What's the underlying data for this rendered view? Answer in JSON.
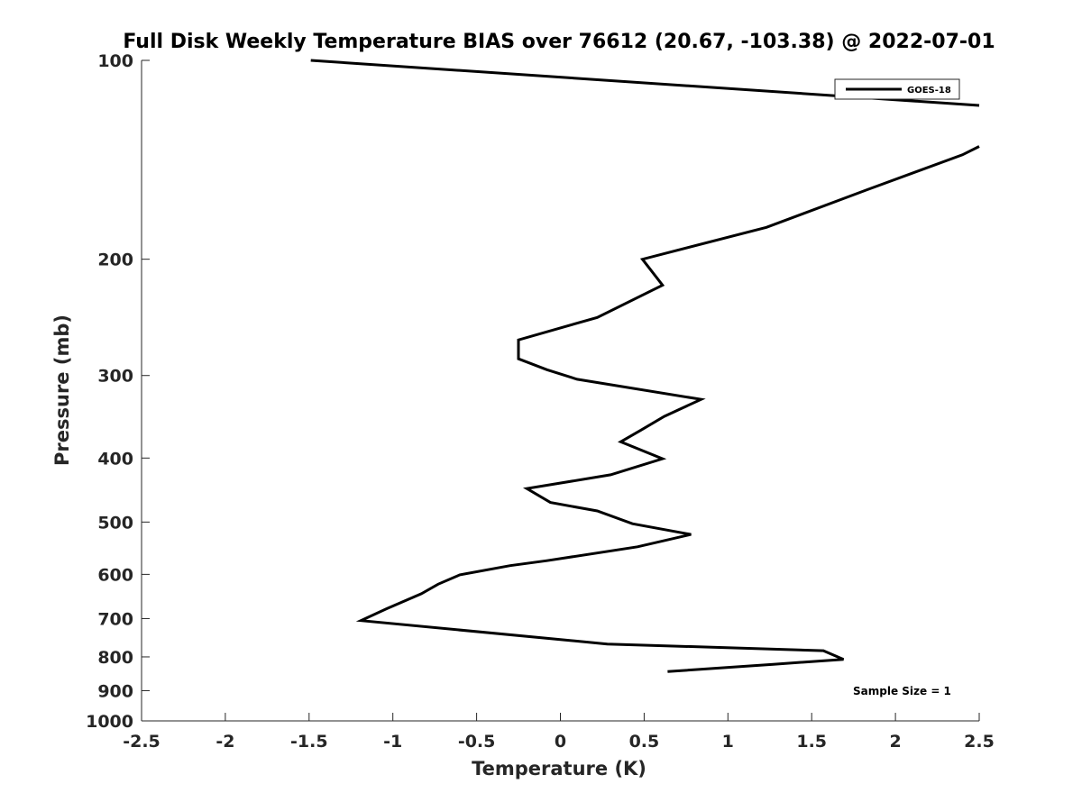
{
  "chart_data": {
    "type": "line",
    "title": "Full Disk Weekly Temperature BIAS over 76612 (20.67, -103.38) @ 2022-07-01",
    "xlabel": "Temperature (K)",
    "ylabel": "Pressure (mb)",
    "xlim": [
      -2.5,
      2.5
    ],
    "ylim": [
      100,
      1000
    ],
    "y_scale": "log",
    "y_reversed": true,
    "grid": false,
    "x_ticks": [
      -2.5,
      -2,
      -1.5,
      -1,
      -0.5,
      0,
      0.5,
      1,
      1.5,
      2,
      2.5
    ],
    "x_tick_labels": [
      "-2.5",
      "-2",
      "-1.5",
      "-1",
      "-0.5",
      "0",
      "0.5",
      "1",
      "1.5",
      "2",
      "2.5"
    ],
    "y_ticks": [
      100,
      200,
      300,
      400,
      500,
      600,
      700,
      800,
      900,
      1000
    ],
    "y_tick_labels": [
      "100",
      "200",
      "300",
      "400",
      "500",
      "600",
      "700",
      "800",
      "900",
      "1000"
    ],
    "legend_position": "top-right",
    "series": [
      {
        "name": "GOES-18",
        "color": "#000000",
        "segments": [
          [
            [
              -1.49,
              100
            ],
            [
              2.5,
              117
            ]
          ],
          [
            [
              2.5,
              135
            ],
            [
              2.4,
              139
            ],
            [
              1.83,
              157
            ],
            [
              1.23,
              179
            ],
            [
              0.49,
              200
            ],
            [
              0.61,
              219
            ],
            [
              0.22,
              245
            ],
            [
              -0.25,
              265
            ],
            [
              -0.25,
              283
            ],
            [
              -0.08,
              294
            ],
            [
              0.1,
              304
            ],
            [
              0.84,
              326
            ],
            [
              0.62,
              346
            ],
            [
              0.48,
              363
            ],
            [
              0.36,
              378
            ],
            [
              0.61,
              401
            ],
            [
              0.3,
              424
            ],
            [
              -0.2,
              445
            ],
            [
              -0.06,
              467
            ],
            [
              0.22,
              481
            ],
            [
              0.43,
              503
            ],
            [
              0.78,
              522
            ],
            [
              0.46,
              545
            ],
            [
              -0.08,
              572
            ],
            [
              -0.3,
              582
            ],
            [
              -0.6,
              601
            ],
            [
              -0.73,
              621
            ],
            [
              -0.83,
              642
            ],
            [
              -1.04,
              677
            ],
            [
              -1.19,
              705
            ],
            [
              0.28,
              765
            ],
            [
              1.57,
              783
            ],
            [
              1.69,
              807
            ],
            [
              1.27,
              821
            ],
            [
              0.64,
              842
            ]
          ]
        ]
      }
    ],
    "annotations": [
      "Sample Size = 1"
    ]
  }
}
